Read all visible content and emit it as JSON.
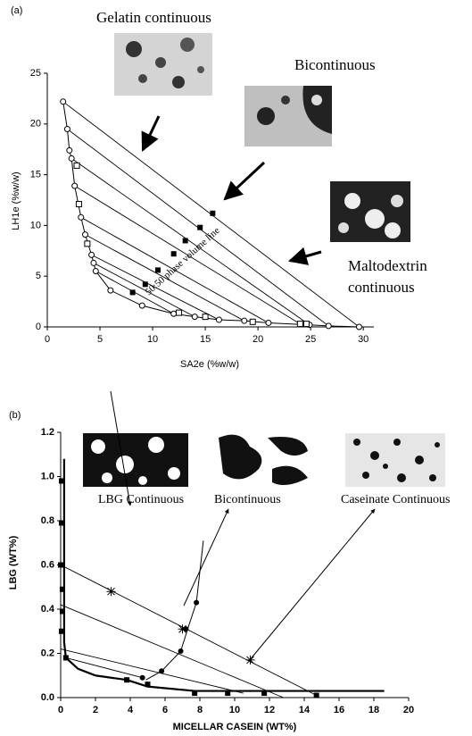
{
  "chart_data": [
    {
      "type": "scatter",
      "panel_label": "(a)",
      "xlabel": "SA2e (%w/w)",
      "ylabel": "LH1e (%w/w)",
      "xlim": [
        0,
        31
      ],
      "ylim": [
        0,
        25
      ],
      "xticks": [
        0,
        5,
        10,
        15,
        20,
        25,
        30
      ],
      "yticks": [
        0,
        5,
        10,
        15,
        20,
        25
      ],
      "annotations": [
        "Gelatin continuous",
        "Bicontinuous",
        "Maltodextrin continuous",
        "50:50 phase volume line"
      ],
      "series": [
        {
          "color": "#000000",
          "marker": "open-circle",
          "line": true,
          "x": [
            1.5,
            1.9,
            2.1,
            2.3,
            2.6,
            3.2,
            3.6,
            4.2,
            4.4,
            4.6,
            6.0,
            9.0,
            12.0,
            14.0,
            16.3,
            18.7,
            21.0,
            24.9,
            26.7,
            29.6
          ],
          "y": [
            22.2,
            19.5,
            17.4,
            16.6,
            13.9,
            10.8,
            9.1,
            7.1,
            6.3,
            5.5,
            3.6,
            2.1,
            1.3,
            1.0,
            0.7,
            0.6,
            0.4,
            0.2,
            0.1,
            0.0
          ]
        },
        {
          "color": "#000000",
          "marker": "open-square",
          "line": false,
          "x": [
            2.8,
            3.0,
            3.8,
            12.5,
            15.0,
            19.5,
            24.0,
            24.6
          ],
          "y": [
            15.9,
            12.1,
            8.2,
            1.4,
            1.0,
            0.5,
            0.3,
            0.3
          ]
        },
        {
          "color": "#000000",
          "marker": "filled-square",
          "line": false,
          "x": [
            15.7,
            14.5,
            13.1,
            12.0,
            10.5,
            9.3,
            8.1
          ],
          "y": [
            11.2,
            9.8,
            8.5,
            7.2,
            5.6,
            4.2,
            3.4
          ]
        }
      ],
      "tie_lines": [
        {
          "x": [
            1.5,
            29.6
          ],
          "y": [
            22.2,
            0.0
          ]
        },
        {
          "x": [
            1.9,
            26.7
          ],
          "y": [
            19.5,
            0.1
          ]
        },
        {
          "x": [
            2.3,
            24.9
          ],
          "y": [
            16.6,
            0.2
          ]
        },
        {
          "x": [
            2.6,
            24.0
          ],
          "y": [
            13.9,
            0.3
          ]
        },
        {
          "x": [
            3.2,
            21.0
          ],
          "y": [
            10.8,
            0.4
          ]
        },
        {
          "x": [
            3.6,
            18.7
          ],
          "y": [
            9.1,
            0.6
          ]
        },
        {
          "x": [
            4.2,
            16.3
          ],
          "y": [
            7.1,
            0.7
          ]
        },
        {
          "x": [
            4.4,
            14.0
          ],
          "y": [
            6.3,
            1.0
          ]
        },
        {
          "x": [
            4.6,
            12.0
          ],
          "y": [
            5.5,
            1.3
          ]
        }
      ]
    },
    {
      "type": "scatter",
      "panel_label": "(b)",
      "xlabel": "MICELLAR CASEIN (WT%)",
      "ylabel": "LBG (WT%)",
      "xlim": [
        0,
        20
      ],
      "ylim": [
        0,
        1.2
      ],
      "xticks": [
        0,
        2,
        4,
        6,
        8,
        10,
        12,
        14,
        16,
        18,
        20
      ],
      "yticks": [
        {
          "value": 0,
          "label": "0.0"
        },
        0.2,
        0.4,
        0.6,
        0.8,
        {
          "value": 1,
          "label": "1.0"
        },
        1.2
      ],
      "annotations": [
        "LBG Continuous",
        "Bicontinuous",
        "Caseinate Continuous"
      ],
      "series": [
        {
          "color": "#000000",
          "marker": "none",
          "line": true,
          "width": 2.2,
          "x": [
            0.2,
            0.2,
            0.3,
            1.0,
            2.0,
            3.8,
            5.0,
            7.7,
            10.0,
            14.7,
            18.6
          ],
          "y": [
            1.08,
            0.25,
            0.18,
            0.13,
            0.1,
            0.08,
            0.05,
            0.03,
            0.03,
            0.03,
            0.03
          ]
        },
        {
          "color": "#000000",
          "marker": "none",
          "line": true,
          "x": [
            4.9,
            5.8,
            6.9,
            7.3,
            7.8,
            8.2
          ],
          "y": [
            0.08,
            0.12,
            0.21,
            0.31,
            0.43,
            0.71
          ]
        },
        {
          "color": "#000000",
          "marker": "filled-square",
          "line": false,
          "x": [
            0.05,
            0.05,
            0.0,
            0.1,
            0.1,
            0.05,
            0.3,
            3.8,
            5.0,
            7.7,
            9.6,
            11.7,
            14.7
          ],
          "y": [
            0.98,
            0.79,
            0.6,
            0.49,
            0.39,
            0.3,
            0.18,
            0.08,
            0.06,
            0.02,
            0.02,
            0.02,
            0.01
          ]
        },
        {
          "color": "#000000",
          "marker": "filled-circle",
          "line": false,
          "x": [
            4.7,
            5.8,
            6.9,
            7.2,
            7.8
          ],
          "y": [
            0.09,
            0.12,
            0.21,
            0.31,
            0.43
          ]
        },
        {
          "color": "#000000",
          "marker": "star",
          "line": false,
          "x": [
            2.9,
            7.0,
            10.9
          ],
          "y": [
            0.48,
            0.31,
            0.17
          ]
        }
      ],
      "tie_lines": [
        {
          "x": [
            0.0,
            14.7
          ],
          "y": [
            0.6,
            0.01
          ]
        },
        {
          "x": [
            0.0,
            12.8
          ],
          "y": [
            0.42,
            0.0
          ]
        },
        {
          "x": [
            0.0,
            10.5
          ],
          "y": [
            0.22,
            0.02
          ]
        },
        {
          "x": [
            0.3,
            4.7
          ],
          "y": [
            0.18,
            0.09
          ]
        }
      ]
    }
  ]
}
